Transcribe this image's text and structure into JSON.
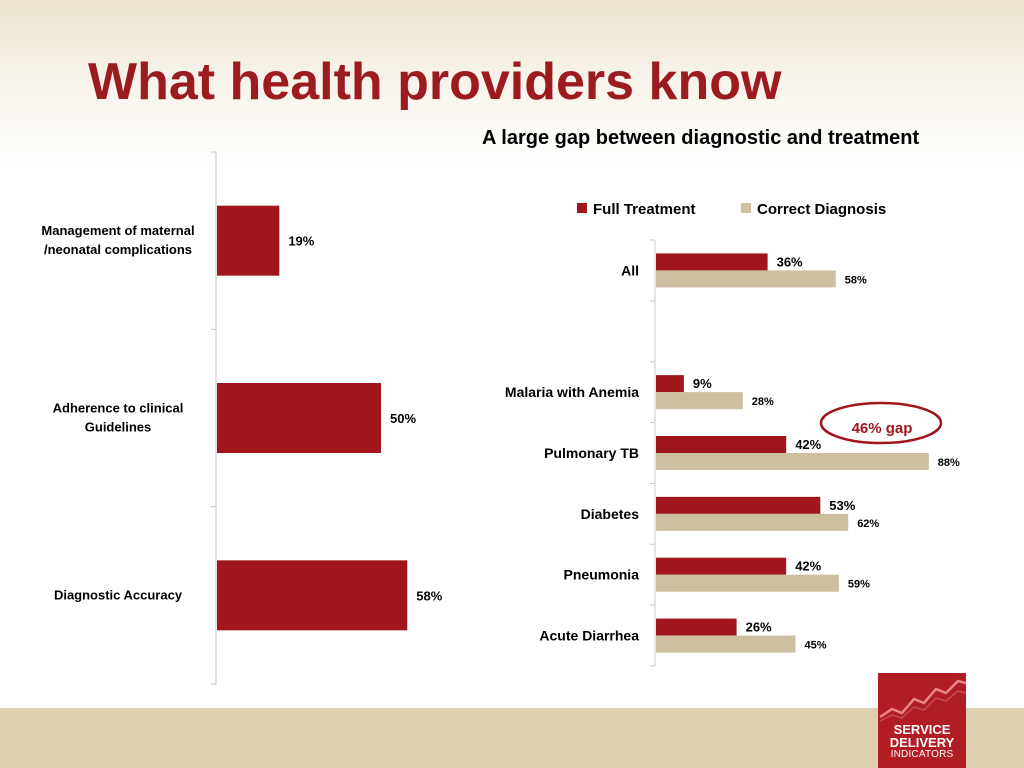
{
  "slide": {
    "title": "What health providers know",
    "subtitle": "A large gap between diagnostic and treatment",
    "gap_annotation": "46% gap",
    "logo": {
      "line1": "SERVICE",
      "line2": "DELIVERY",
      "line3": "INDICATORS"
    }
  },
  "colors": {
    "title": "#9b1b1f",
    "full_treatment": "#a0161d",
    "correct_diagnosis": "#cdc0a0",
    "axis": "#c8c8c8",
    "footer": "#ddd0ae",
    "logo_bg": "#b01e23"
  },
  "chart_data": [
    {
      "type": "bar",
      "orientation": "horizontal",
      "categories": [
        "Management of maternal /neonatal complications",
        "Adherence to clinical Guidelines",
        "Diagnostic Accuracy"
      ],
      "category_lines": [
        [
          "Management of maternal",
          "/neonatal complications"
        ],
        [
          "Adherence to clinical",
          "Guidelines"
        ],
        [
          "Diagnostic Accuracy"
        ]
      ],
      "values": [
        19,
        50,
        58
      ],
      "data_labels": [
        "19%",
        "50%",
        "58%"
      ],
      "grid": false
    },
    {
      "type": "bar",
      "orientation": "horizontal",
      "title": "A large gap between diagnostic and treatment",
      "legend": "top",
      "categories": [
        "All",
        "",
        "Malaria with Anemia",
        "Pulmonary TB",
        "Diabetes",
        "Pneumonia",
        "Acute Diarrhea"
      ],
      "series": [
        {
          "name": "Full Treatment",
          "values": [
            36,
            null,
            9,
            42,
            53,
            42,
            26
          ],
          "data_labels": [
            "36%",
            "",
            "9%",
            "42%",
            "53%",
            "42%",
            "26%"
          ]
        },
        {
          "name": "Correct Diagnosis",
          "values": [
            58,
            null,
            28,
            88,
            62,
            59,
            45
          ],
          "data_labels": [
            "58%",
            "",
            "28%",
            "88%",
            "62%",
            "59%",
            "45%"
          ]
        }
      ],
      "grid": false
    }
  ]
}
